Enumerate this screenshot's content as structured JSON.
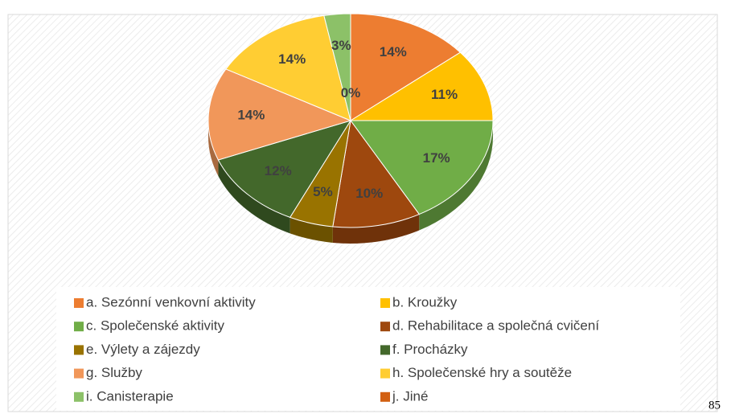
{
  "chart_data": {
    "type": "pie",
    "categories": [
      "a. Sezónní venkovní aktivity",
      "b. Kroužky",
      "c. Společenské aktivity",
      "d. Rehabilitace a společná cvičení",
      "e. Výlety a zájezdy",
      "f. Procházky",
      "g. Služby",
      "h. Společenské hry a soutěže",
      "i. Canisterapie",
      "j. Jiné"
    ],
    "values": [
      14,
      11,
      17,
      10,
      5,
      12,
      14,
      14,
      3,
      0
    ],
    "value_labels": [
      "14%",
      "11%",
      "17%",
      "10%",
      "5%",
      "12%",
      "14%",
      "14%",
      "3%",
      "0%"
    ],
    "colors": [
      "#ED7D31",
      "#FFC000",
      "#70AD47",
      "#9E480E",
      "#997300",
      "#43682B",
      "#F1975A",
      "#FFCD33",
      "#8CC168",
      "#D26012"
    ]
  },
  "page_number": 85
}
